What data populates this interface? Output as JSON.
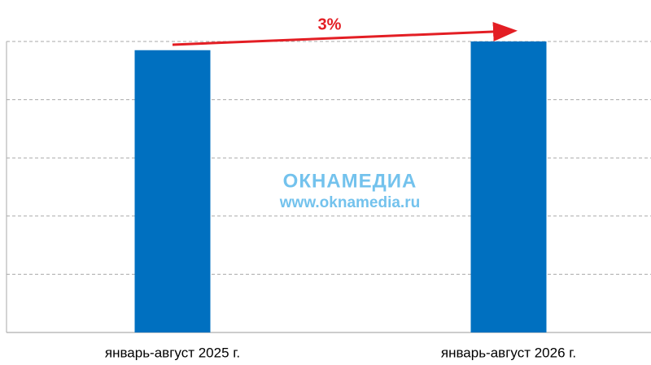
{
  "chart_data": {
    "type": "bar",
    "categories": [
      "январь-август 2025 г.",
      "январь-август 2026 г."
    ],
    "values": [
      97,
      100
    ],
    "color": "#0070c0",
    "ylim": [
      0,
      100
    ],
    "yticks": [
      0,
      20,
      40,
      60,
      80,
      100
    ],
    "grid": true,
    "annotation": "3%",
    "watermark": {
      "logo": "ОКНАМЕДИА",
      "url": "www.oknamedia.ru"
    }
  }
}
